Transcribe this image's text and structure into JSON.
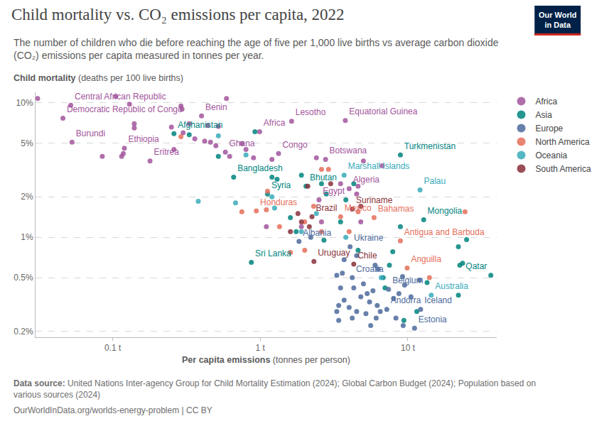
{
  "chart_data": {
    "type": "scatter",
    "title": "Child mortality vs. CO₂ emissions per capita, 2022",
    "subtitle": [
      "The number of children who die before reaching the age of five per 1,000 live births vs average carbon dioxide",
      "(CO₂) emissions per capita measured in tonnes per year."
    ],
    "y_label": "Child mortality",
    "y_label_unit": "(deaths per 100 live births)",
    "x_label": "Per capita emissions",
    "x_label_unit": "(tonnes per person)",
    "source_label": "Data source:",
    "source": [
      "United Nations Inter-agency Group for Child Mortality Estimation (2024); Global Carbon Budget (2024); Population based on",
      "various sources (2024)"
    ],
    "footer": "OurWorldInData.org/worlds-energy-problem | CC BY",
    "logo": [
      "Our World",
      "in Data"
    ],
    "log": true,
    "grid": "y",
    "legend": "right",
    "marker": "circle",
    "xlim": [
      0.03,
      40
    ],
    "xticks": [
      {
        "value": 0.1,
        "label": "0.1 t"
      },
      {
        "value": 1,
        "label": "1 t"
      },
      {
        "value": 10,
        "label": "10 t"
      }
    ],
    "ylim": [
      0.18,
      12
    ],
    "yticks": [
      {
        "value": 0.2,
        "label": "0.2%"
      },
      {
        "value": 0.5,
        "label": "0.5%"
      },
      {
        "value": 1,
        "label": "1%"
      },
      {
        "value": 2,
        "label": "2%"
      },
      {
        "value": 5,
        "label": "5%"
      },
      {
        "value": 10,
        "label": "10%"
      }
    ],
    "series": [
      {
        "name": "Africa",
        "color": "#a2559c",
        "x": [
          0.031,
          0.052,
          0.046,
          0.105,
          0.053,
          0.085,
          0.115,
          0.12,
          0.118,
          0.14,
          0.14,
          0.13,
          0.179,
          0.25,
          0.26,
          0.29,
          0.295,
          0.3,
          0.33,
          0.36,
          0.4,
          0.42,
          0.44,
          0.46,
          0.5,
          0.52,
          0.59,
          0.58,
          0.62,
          0.75,
          0.8,
          0.9,
          0.99,
          1.33,
          1.2,
          1.63,
          2.4,
          2.77,
          3.77,
          4.0,
          4.6,
          4.5,
          2.5,
          2.6,
          1.1,
          6.7,
          3.5,
          5.0,
          1.9,
          4.8
        ],
        "values": [
          10.8,
          9.6,
          7.7,
          11.2,
          5.1,
          4.0,
          4.0,
          4.6,
          4.2,
          7.0,
          6.5,
          9.8,
          3.7,
          6.6,
          4.5,
          9.5,
          9.0,
          6.0,
          7.0,
          5.4,
          8.0,
          5.2,
          6.8,
          5.1,
          4.8,
          6.7,
          10.8,
          4.3,
          4.0,
          5.0,
          4.5,
          3.9,
          6.1,
          4.2,
          3.8,
          7.3,
          3.9,
          3.8,
          7.4,
          2.3,
          2.4,
          2.1,
          1.9,
          1.3,
          1.2,
          3.4,
          2.5,
          3.7,
          1.2,
          1.3
        ],
        "labels": [
          null,
          "Central African Republic",
          "Democratic Republic of Congo",
          null,
          "Burundi",
          null,
          null,
          "Ethiopia",
          null,
          null,
          null,
          null,
          "Eritrea",
          null,
          null,
          null,
          null,
          null,
          null,
          null,
          "Benin",
          null,
          null,
          null,
          null,
          null,
          null,
          "Ghana",
          null,
          null,
          null,
          null,
          "Africa",
          "Congo",
          null,
          "Lesotho",
          null,
          "Botswana",
          "Equatorial Guinea",
          "Algeria",
          null,
          null,
          "Egypt",
          null,
          null,
          null,
          null,
          null,
          null,
          null
        ]
      },
      {
        "name": "Asia",
        "color": "#00847e",
        "x": [
          0.26,
          0.92,
          0.66,
          0.33,
          0.52,
          1.12,
          1.2,
          1.3,
          2.04,
          1.9,
          2.6,
          2.8,
          3.8,
          4.3,
          8.9,
          12.8,
          8.9,
          3.5,
          1.6,
          1.75,
          2.7,
          0.87,
          4.6,
          7.9,
          7.5,
          6.8,
          7.0,
          9.4,
          13.5,
          22.0,
          25.0,
          22.5,
          23.5,
          22.0,
          36.5,
          11.5
        ],
        "values": [
          5.9,
          6.1,
          2.8,
          5.8,
          4.0,
          2.1,
          2.8,
          2.7,
          2.4,
          2.9,
          2.5,
          2.1,
          1.9,
          2.5,
          4.1,
          1.35,
          1.2,
          1.3,
          1.4,
          1.1,
          0.95,
          0.65,
          0.8,
          0.78,
          0.62,
          0.5,
          0.42,
          0.24,
          0.46,
          0.85,
          0.96,
          0.62,
          0.64,
          0.37,
          0.52,
          0.28
        ],
        "labels": [
          "Afghanistan",
          null,
          "Bangladesh",
          null,
          null,
          "Syria",
          null,
          null,
          "Bhutan",
          null,
          null,
          null,
          null,
          null,
          "Turkmenistan",
          "Mongolia",
          null,
          null,
          null,
          null,
          null,
          "Sri Lanka",
          null,
          null,
          null,
          null,
          null,
          null,
          null,
          null,
          null,
          null,
          null,
          null,
          "Qatar",
          null
        ]
      },
      {
        "name": "Europe",
        "color": "#4c6a9c",
        "x": [
          1.83,
          4.06,
          4.5,
          3.7,
          3.6,
          4.2,
          3.5,
          4.3,
          3.7,
          3.4,
          3.3,
          4.0,
          5.0,
          4.8,
          5.3,
          5.8,
          5.5,
          6.2,
          6.5,
          6.1,
          5.2,
          4.5,
          7.4,
          7.2,
          12.2,
          11.1,
          8.0,
          8.7,
          9.5,
          10.5,
          8.3,
          9.3,
          6.0,
          6.3,
          9.2,
          12.0,
          4.2,
          3.4,
          5.6,
          2.2,
          3.3
        ],
        "values": [
          0.93,
          0.85,
          0.73,
          0.68,
          0.54,
          0.5,
          0.42,
          0.42,
          0.34,
          0.31,
          0.28,
          0.3,
          0.45,
          0.36,
          0.38,
          0.4,
          0.33,
          0.31,
          0.28,
          0.25,
          0.27,
          0.28,
          0.41,
          0.29,
          0.29,
          0.21,
          0.35,
          0.38,
          0.44,
          0.36,
          0.25,
          0.22,
          0.62,
          0.58,
          0.51,
          0.48,
          0.25,
          0.24,
          0.22,
          1.0,
          0.52
        ],
        "labels": [
          "Albania",
          "Ukraine",
          null,
          null,
          null,
          "Croatia",
          null,
          null,
          null,
          null,
          null,
          null,
          null,
          null,
          null,
          null,
          null,
          null,
          null,
          null,
          null,
          null,
          "Belgium",
          "Andorra",
          "Iceland",
          "Estonia",
          null,
          null,
          null,
          null,
          null,
          null,
          null,
          null,
          null,
          null,
          null,
          null,
          null,
          null,
          null
        ]
      },
      {
        "name": "North America",
        "color": "#e56e5a",
        "x": [
          0.29,
          0.94,
          0.75,
          1.1,
          1.12,
          1.6,
          2.0,
          2.3,
          2.6,
          2.9,
          2.0,
          2.6,
          3.5,
          5.9,
          4.6,
          4.0,
          8.9,
          9.9,
          14.0,
          24.4,
          1.35
        ],
        "values": [
          5.6,
          1.57,
          1.55,
          1.6,
          2.2,
          0.77,
          0.8,
          1.7,
          3.2,
          3.2,
          1.3,
          1.1,
          1.42,
          1.4,
          1.55,
          1.1,
          0.94,
          0.59,
          0.5,
          1.55,
          1.2
        ],
        "labels": [
          null,
          "Honduras",
          null,
          null,
          null,
          null,
          null,
          null,
          null,
          null,
          null,
          null,
          "Mexico",
          "Bahamas",
          null,
          null,
          "Antigua and Barbuda",
          "Anguilla",
          null,
          null,
          null
        ]
      },
      {
        "name": "Oceania",
        "color": "#38aaba",
        "x": [
          0.38,
          0.52,
          0.8,
          0.68,
          1.2,
          1.25,
          1.9,
          3.7,
          12.1,
          14.4,
          3.8,
          6.6,
          2.4
        ],
        "values": [
          1.85,
          5.7,
          4.1,
          1.8,
          2.0,
          1.65,
          1.1,
          2.9,
          2.25,
          0.37,
          1.0,
          0.5,
          1.5
        ],
        "labels": [
          null,
          null,
          null,
          null,
          null,
          null,
          null,
          "Marshall Islands",
          "Palau",
          "Australia",
          null,
          null,
          null
        ]
      },
      {
        "name": "South America",
        "color": "#883039",
        "x": [
          2.24,
          4.2,
          2.31,
          4.3,
          2.1,
          1.8,
          1.9,
          2.15,
          3.0,
          4.8,
          1.6
        ],
        "values": [
          1.42,
          1.62,
          0.66,
          0.63,
          2.4,
          1.5,
          1.3,
          1.2,
          2.5,
          1.7,
          1.1
        ],
        "labels": [
          "Brazil",
          "Suriname",
          "Uruguay",
          "Chile",
          null,
          null,
          null,
          null,
          null,
          null,
          null
        ]
      }
    ]
  }
}
